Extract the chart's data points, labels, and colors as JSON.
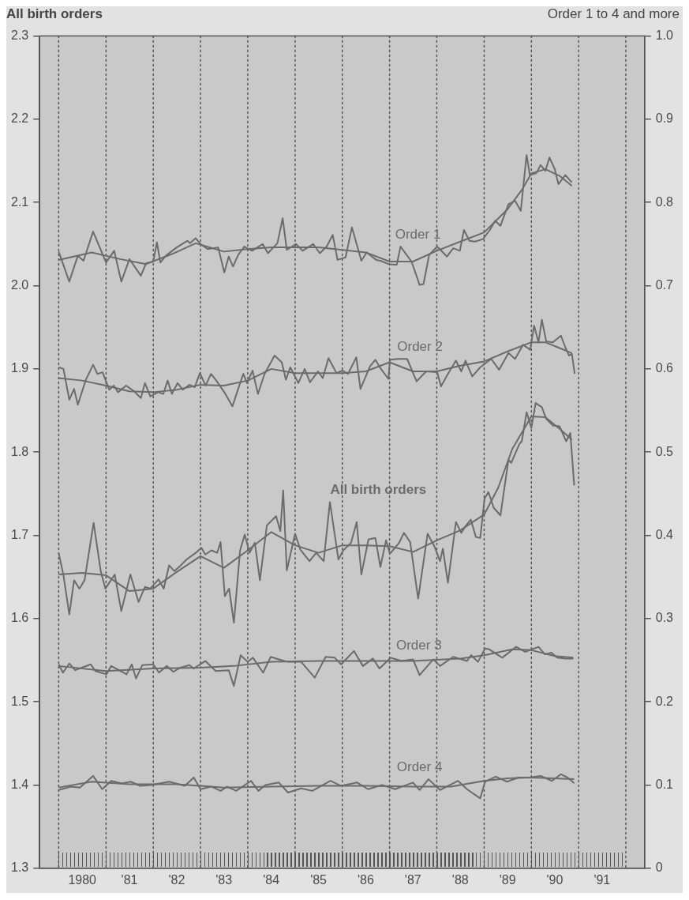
{
  "chart_data": {
    "type": "line",
    "ylabel": "All birth orders",
    "y2label": "Order 1 to 4 and more",
    "xlim": [
      "1979-08-07",
      "1992-05-25"
    ],
    "xticks": [
      {
        "value": "1980-07-01",
        "label": "1980"
      },
      {
        "value": "1981-07-01",
        "label": "'81"
      },
      {
        "value": "1982-07-01",
        "label": "'82"
      },
      {
        "value": "1983-07-01",
        "label": "'83"
      },
      {
        "value": "1984-07-01",
        "label": "'84"
      },
      {
        "value": "1985-07-01",
        "label": "'85"
      },
      {
        "value": "1986-07-01",
        "label": "'86"
      },
      {
        "value": "1987-07-01",
        "label": "'87"
      },
      {
        "value": "1988-07-01",
        "label": "'88"
      },
      {
        "value": "1989-07-01",
        "label": "'89"
      },
      {
        "value": "1990-07-01",
        "label": "'90"
      },
      {
        "value": "1991-07-01",
        "label": "'91"
      }
    ],
    "ylim": [
      1.3,
      2.3
    ],
    "yticks": [
      1.3,
      1.4,
      1.5,
      1.6,
      1.7,
      1.8,
      1.9,
      {
        "value": 2,
        "label": "2.0"
      },
      2.1,
      2.2,
      2.3
    ],
    "y2lim": [
      0,
      1
    ],
    "y2ticks": [
      0,
      0.1,
      0.2,
      0.3,
      0.4,
      0.5,
      0.6,
      0.7,
      0.8,
      0.9,
      {
        "value": 1,
        "label": "1.0"
      }
    ],
    "ref_lines": [
      {
        "axis": "x",
        "value": "1980-01-01",
        "line_style": "dotted",
        "color": "#555555"
      },
      {
        "axis": "x",
        "value": "1981-01-01",
        "line_style": "dotted",
        "color": "#555555"
      },
      {
        "axis": "x",
        "value": "1982-01-01",
        "line_style": "dotted",
        "color": "#555555"
      },
      {
        "axis": "x",
        "value": "1983-01-01",
        "line_style": "dotted",
        "color": "#555555"
      },
      {
        "axis": "x",
        "value": "1984-01-01",
        "line_style": "dotted",
        "color": "#555555"
      },
      {
        "axis": "x",
        "value": "1985-01-01",
        "line_style": "dotted",
        "color": "#555555"
      },
      {
        "axis": "x",
        "value": "1986-01-01",
        "line_style": "dotted",
        "color": "#555555"
      },
      {
        "axis": "x",
        "value": "1987-01-01",
        "line_style": "dotted",
        "color": "#555555"
      },
      {
        "axis": "x",
        "value": "1988-01-01",
        "line_style": "dotted",
        "color": "#555555"
      },
      {
        "axis": "x",
        "value": "1989-01-01",
        "line_style": "dotted",
        "color": "#555555"
      },
      {
        "axis": "x",
        "value": "1990-01-01",
        "line_style": "dotted",
        "color": "#555555"
      },
      {
        "axis": "x",
        "value": "1991-01-01",
        "line_style": "dotted",
        "color": "#555555"
      },
      {
        "axis": "x",
        "value": "1992-01-01",
        "line_style": "dotted",
        "color": "#555555"
      }
    ],
    "series": [
      {
        "name": "Order 1",
        "color": "#6b6b6b",
        "axis": "y2",
        "x": [
          "1980-01-01",
          "1980-03-23",
          "1980-05-28",
          "1980-07-11",
          "1980-09-23",
          "1981-01-01",
          "1981-03-05",
          "1981-04-29",
          "1981-07-01",
          "1981-09-27",
          "1981-11-07",
          "1982-01-01",
          "1982-01-29",
          "1982-02-25",
          "1982-04-08",
          "1982-07-01",
          "1982-09-23",
          "1982-10-11",
          "1982-11-25",
          "1983-01-01",
          "1983-02-25",
          "1983-05-17",
          "1983-07-04",
          "1983-08-07",
          "1983-09-09",
          "1983-10-19",
          "1983-12-05",
          "1984-02-03",
          "1984-04-26",
          "1984-06-05",
          "1984-08-17",
          "1984-09-27",
          "1984-10-29",
          "1985-01-08",
          "1985-02-28",
          "1985-05-21",
          "1985-07-11",
          "1985-09-02",
          "1985-10-19",
          "1985-11-25",
          "1986-01-26",
          "1986-03-16",
          "1986-05-28",
          "1986-07-08",
          "1986-09-20",
          "1986-10-22",
          "1986-12-23",
          "1987-02-25",
          "1987-03-27",
          "1987-06-20",
          "1987-08-21",
          "1987-09-20",
          "1987-11-03",
          "1988-01-04",
          "1988-03-20",
          "1988-05-07",
          "1988-06-27",
          "1988-07-29",
          "1988-09-09",
          "1988-10-22",
          "1988-12-23",
          "1989-02-14",
          "1989-03-27",
          "1989-05-07",
          "1989-07-08",
          "1989-08-28",
          "1989-10-11",
          "1989-11-25",
          "1989-12-20",
          "1990-02-07",
          "1990-03-13",
          "1990-04-19",
          "1990-05-21",
          "1990-07-01",
          "1990-07-29",
          "1990-09-20",
          "1990-11-10"
        ],
        "values": [
          0.741,
          0.705,
          0.736,
          0.73,
          0.765,
          0.728,
          0.742,
          0.705,
          0.732,
          0.712,
          0.727,
          0.729,
          0.752,
          0.728,
          0.736,
          0.746,
          0.754,
          0.751,
          0.757,
          0.75,
          0.744,
          0.746,
          0.716,
          0.735,
          0.723,
          0.737,
          0.747,
          0.742,
          0.75,
          0.739,
          0.751,
          0.781,
          0.743,
          0.75,
          0.742,
          0.75,
          0.739,
          0.747,
          0.761,
          0.731,
          0.734,
          0.77,
          0.73,
          0.74,
          0.731,
          0.73,
          0.726,
          0.725,
          0.747,
          0.729,
          0.701,
          0.702,
          0.737,
          0.747,
          0.735,
          0.745,
          0.742,
          0.767,
          0.754,
          0.753,
          0.756,
          0.767,
          0.778,
          0.772,
          0.798,
          0.802,
          0.79,
          0.857,
          0.833,
          0.835,
          0.845,
          0.838,
          0.854,
          0.84,
          0.822,
          0.833,
          0.824
        ]
      },
      {
        "color": "#6b6b6b",
        "axis": "y2",
        "x": [
          "1980-01-01",
          "1980-09-13",
          "1981-04-19",
          "1981-11-07",
          "1982-05-25",
          "1982-11-25",
          "1983-07-01",
          "1984-01-01",
          "1984-07-01",
          "1985-01-01",
          "1985-07-01",
          "1986-01-01",
          "1986-07-01",
          "1987-01-01",
          "1987-07-01",
          "1988-01-01",
          "1988-07-01",
          "1989-01-01",
          "1989-07-01",
          "1989-10-19",
          "1990-01-01",
          "1990-04-19",
          "1990-08-07",
          "1990-11-10"
        ],
        "values": [
          0.731,
          0.74,
          0.732,
          0.726,
          0.738,
          0.751,
          0.741,
          0.744,
          0.746,
          0.746,
          0.746,
          0.743,
          0.74,
          0.729,
          0.729,
          0.742,
          0.753,
          0.764,
          0.792,
          0.815,
          0.835,
          0.84,
          0.832,
          0.82
        ]
      },
      {
        "name": "Order 2",
        "color": "#6b6b6b",
        "axis": "y2",
        "x": [
          "1980-01-01",
          "1980-02-07",
          "1980-03-23",
          "1980-04-29",
          "1980-05-28",
          "1980-07-29",
          "1980-09-23",
          "1980-10-26",
          "1980-12-05",
          "1981-01-26",
          "1981-03-02",
          "1981-04-04",
          "1981-06-05",
          "1981-08-07",
          "1981-09-27",
          "1981-10-29",
          "1981-12-09",
          "1982-02-07",
          "1982-03-20",
          "1982-04-22",
          "1982-05-25",
          "1982-07-08",
          "1982-08-17",
          "1982-10-08",
          "1982-11-17",
          "1982-12-27",
          "1983-02-10",
          "1983-03-23",
          "1983-05-03",
          "1983-07-04",
          "1983-09-05",
          "1983-10-19",
          "1983-11-28",
          "1983-12-27",
          "1984-02-07",
          "1984-03-20",
          "1984-05-10",
          "1984-07-26",
          "1984-09-20",
          "1984-10-22",
          "1984-11-25",
          "1985-01-26",
          "1985-03-16",
          "1985-04-26",
          "1985-06-27",
          "1985-08-03",
          "1985-09-16",
          "1985-11-17",
          "1986-01-01",
          "1986-02-14",
          "1986-04-19",
          "1986-05-21",
          "1986-08-03",
          "1986-09-13",
          "1986-10-22",
          "1986-12-23",
          "1987-01-04",
          "1987-03-05",
          "1987-05-17",
          "1987-07-29",
          "1987-10-11",
          "1988-01-04",
          "1988-02-03",
          "1988-03-16",
          "1988-05-28",
          "1988-07-08",
          "1988-08-10",
          "1988-10-01",
          "1988-12-02",
          "1989-02-25",
          "1989-04-26",
          "1989-07-08",
          "1989-08-28",
          "1989-10-29",
          "1989-12-23",
          "1990-01-22",
          "1990-02-25",
          "1990-03-23",
          "1990-04-26",
          "1990-06-16",
          "1990-08-17",
          "1990-09-20",
          "1990-10-19",
          "1990-11-10",
          "1990-12-02"
        ],
        "values": [
          0.602,
          0.6,
          0.563,
          0.576,
          0.557,
          0.587,
          0.605,
          0.594,
          0.596,
          0.575,
          0.58,
          0.572,
          0.58,
          0.573,
          0.565,
          0.583,
          0.567,
          0.572,
          0.57,
          0.586,
          0.57,
          0.583,
          0.575,
          0.581,
          0.578,
          0.595,
          0.58,
          0.594,
          0.586,
          0.572,
          0.555,
          0.576,
          0.594,
          0.583,
          0.598,
          0.57,
          0.594,
          0.616,
          0.608,
          0.587,
          0.602,
          0.583,
          0.6,
          0.584,
          0.597,
          0.589,
          0.613,
          0.595,
          0.598,
          0.594,
          0.614,
          0.576,
          0.603,
          0.611,
          0.601,
          0.588,
          0.611,
          0.612,
          0.612,
          0.585,
          0.597,
          0.596,
          0.579,
          0.591,
          0.61,
          0.597,
          0.61,
          0.591,
          0.602,
          0.612,
          0.599,
          0.619,
          0.612,
          0.629,
          0.623,
          0.652,
          0.632,
          0.659,
          0.633,
          0.632,
          0.64,
          0.626,
          0.616,
          0.618,
          0.594
        ]
      },
      {
        "color": "#6b6b6b",
        "axis": "y2",
        "x": [
          "1980-01-01",
          "1980-07-01",
          "1981-01-01",
          "1981-07-01",
          "1982-01-01",
          "1982-07-01",
          "1983-01-01",
          "1983-07-01",
          "1984-01-01",
          "1984-07-01",
          "1985-01-01",
          "1985-07-01",
          "1986-01-01",
          "1986-07-01",
          "1987-01-01",
          "1987-07-01",
          "1988-01-01",
          "1988-07-01",
          "1989-01-01",
          "1989-07-01",
          "1990-01-01",
          "1990-04-19",
          "1990-08-07",
          "1990-11-10"
        ],
        "values": [
          0.589,
          0.586,
          0.58,
          0.573,
          0.572,
          0.575,
          0.581,
          0.58,
          0.586,
          0.6,
          0.595,
          0.595,
          0.595,
          0.597,
          0.608,
          0.597,
          0.597,
          0.604,
          0.609,
          0.621,
          0.632,
          0.632,
          0.625,
          0.619
        ]
      },
      {
        "name": "All birth orders",
        "color": "#6b6b6b",
        "axis": "y",
        "x": [
          "1980-01-01",
          "1980-02-07",
          "1980-03-23",
          "1980-04-29",
          "1980-06-09",
          "1980-07-19",
          "1980-09-27",
          "1980-11-21",
          "1980-12-27",
          "1981-03-09",
          "1981-04-29",
          "1981-07-08",
          "1981-09-09",
          "1981-10-29",
          "1981-12-09",
          "1982-02-10",
          "1982-03-23",
          "1982-05-03",
          "1982-06-13",
          "1982-07-26",
          "1982-09-16",
          "1982-11-25",
          "1983-01-08",
          "1983-02-07",
          "1983-03-27",
          "1983-05-10",
          "1983-06-05",
          "1983-07-08",
          "1983-08-10",
          "1983-09-16",
          "1983-11-03",
          "1983-12-09",
          "1984-01-15",
          "1984-02-25",
          "1984-04-04",
          "1984-05-28",
          "1984-08-07",
          "1984-09-09",
          "1984-10-01",
          "1984-10-29",
          "1985-01-01",
          "1985-02-10",
          "1985-04-22",
          "1985-06-13",
          "1985-08-10",
          "1985-09-27",
          "1985-12-02",
          "1986-01-08",
          "1986-03-09",
          "1986-04-22",
          "1986-05-28",
          "1986-07-22",
          "1986-09-13",
          "1986-10-22",
          "1986-12-05",
          "1987-01-04",
          "1987-03-16",
          "1987-04-22",
          "1987-06-09",
          "1987-08-10",
          "1987-10-22",
          "1987-12-13",
          "1988-01-26",
          "1988-02-17",
          "1988-03-27",
          "1988-05-28",
          "1988-07-08",
          "1988-08-10",
          "1988-09-20",
          "1988-10-29",
          "1988-12-02",
          "1989-01-04",
          "1989-02-03",
          "1989-03-16",
          "1989-05-07",
          "1989-07-08",
          "1989-07-29",
          "1989-10-01",
          "1989-10-19",
          "1989-11-25",
          "1990-01-01",
          "1990-02-03",
          "1990-03-23",
          "1990-04-26",
          "1990-06-16",
          "1990-08-07",
          "1990-09-27",
          "1990-10-29",
          "1990-11-28"
        ],
        "values": [
          1.679,
          1.652,
          1.605,
          1.646,
          1.636,
          1.646,
          1.715,
          1.657,
          1.636,
          1.653,
          1.609,
          1.653,
          1.62,
          1.638,
          1.636,
          1.647,
          1.636,
          1.664,
          1.657,
          1.663,
          1.671,
          1.679,
          1.685,
          1.677,
          1.682,
          1.679,
          1.692,
          1.627,
          1.636,
          1.595,
          1.682,
          1.701,
          1.679,
          1.691,
          1.646,
          1.712,
          1.723,
          1.705,
          1.754,
          1.658,
          1.702,
          1.683,
          1.669,
          1.679,
          1.669,
          1.74,
          1.671,
          1.682,
          1.691,
          1.716,
          1.653,
          1.695,
          1.697,
          1.662,
          1.694,
          1.678,
          1.691,
          1.703,
          1.692,
          1.624,
          1.702,
          1.687,
          1.669,
          1.684,
          1.643,
          1.716,
          1.703,
          1.711,
          1.719,
          1.698,
          1.697,
          1.744,
          1.752,
          1.733,
          1.724,
          1.791,
          1.787,
          1.81,
          1.813,
          1.848,
          1.829,
          1.859,
          1.854,
          1.84,
          1.832,
          1.831,
          1.813,
          1.823,
          1.76
        ]
      },
      {
        "color": "#6b6b6b",
        "axis": "y",
        "x": [
          "1980-01-01",
          "1980-07-01",
          "1981-01-01",
          "1981-07-01",
          "1982-01-01",
          "1982-07-01",
          "1983-01-01",
          "1983-07-01",
          "1984-01-01",
          "1984-07-01",
          "1985-01-01",
          "1985-07-01",
          "1986-01-01",
          "1986-07-01",
          "1987-01-01",
          "1987-07-01",
          "1988-01-01",
          "1988-07-01",
          "1989-01-01",
          "1989-04-19",
          "1989-08-07",
          "1990-01-01",
          "1990-04-19",
          "1990-08-07",
          "1990-11-10"
        ],
        "values": [
          1.653,
          1.655,
          1.652,
          1.633,
          1.636,
          1.656,
          1.675,
          1.661,
          1.682,
          1.704,
          1.688,
          1.679,
          1.688,
          1.688,
          1.687,
          1.68,
          1.694,
          1.706,
          1.725,
          1.757,
          1.804,
          1.843,
          1.842,
          1.828,
          1.815
        ]
      },
      {
        "name": "Order 3",
        "color": "#6b6b6b",
        "axis": "y2",
        "x": [
          "1980-01-01",
          "1980-02-03",
          "1980-03-23",
          "1980-05-07",
          "1980-09-05",
          "1980-10-11",
          "1981-01-04",
          "1981-02-10",
          "1981-06-09",
          "1981-07-19",
          "1981-08-21",
          "1981-10-08",
          "1982-01-01",
          "1982-02-14",
          "1982-04-15",
          "1982-06-05",
          "1982-07-29",
          "1982-10-08",
          "1982-11-10",
          "1983-02-07",
          "1983-04-29",
          "1983-08-07",
          "1983-09-16",
          "1983-11-07",
          "1984-01-01",
          "1984-02-10",
          "1984-04-29",
          "1984-06-27",
          "1984-08-28",
          "1984-11-07",
          "1985-02-17",
          "1985-06-02",
          "1985-08-25",
          "1985-11-03",
          "1985-12-23",
          "1986-04-01",
          "1986-06-09",
          "1986-08-25",
          "1986-10-15",
          "1987-01-11",
          "1987-04-04",
          "1987-07-01",
          "1987-08-21",
          "1987-12-05",
          "1988-01-26",
          "1988-05-07",
          "1988-08-21",
          "1988-09-23",
          "1988-11-14",
          "1989-01-08",
          "1989-02-10",
          "1989-05-21",
          "1989-09-05",
          "1989-11-14",
          "1990-02-25",
          "1990-04-15",
          "1990-06-05",
          "1990-07-19",
          "1990-09-20",
          "1990-11-21"
        ],
        "values": [
          0.245,
          0.235,
          0.246,
          0.238,
          0.245,
          0.237,
          0.233,
          0.243,
          0.233,
          0.245,
          0.228,
          0.244,
          0.245,
          0.235,
          0.243,
          0.236,
          0.241,
          0.244,
          0.24,
          0.249,
          0.237,
          0.238,
          0.219,
          0.256,
          0.248,
          0.253,
          0.235,
          0.254,
          0.251,
          0.248,
          0.248,
          0.229,
          0.254,
          0.253,
          0.245,
          0.261,
          0.243,
          0.252,
          0.24,
          0.253,
          0.249,
          0.251,
          0.232,
          0.251,
          0.243,
          0.254,
          0.249,
          0.256,
          0.248,
          0.264,
          0.263,
          0.253,
          0.266,
          0.26,
          0.266,
          0.257,
          0.259,
          0.253,
          0.252,
          0.252
        ]
      },
      {
        "color": "#6b6b6b",
        "axis": "y2",
        "x": [
          "1980-01-01",
          "1981-01-01",
          "1982-01-01",
          "1983-01-01",
          "1983-09-13",
          "1984-07-01",
          "1985-07-01",
          "1986-07-01",
          "1987-07-01",
          "1988-07-01",
          "1989-01-01",
          "1989-08-07",
          "1990-01-01",
          "1990-07-01",
          "1990-11-21"
        ],
        "values": [
          0.243,
          0.237,
          0.24,
          0.241,
          0.243,
          0.248,
          0.249,
          0.249,
          0.249,
          0.252,
          0.256,
          0.263,
          0.262,
          0.255,
          0.253
        ]
      },
      {
        "name": "Order 4",
        "color": "#6b6b6b",
        "axis": "y2",
        "x": [
          "1980-01-01",
          "1980-04-04",
          "1980-06-13",
          "1980-09-23",
          "1980-12-02",
          "1981-02-10",
          "1981-05-03",
          "1981-07-11",
          "1981-09-20",
          "1981-12-16",
          "1982-05-03",
          "1982-09-02",
          "1982-11-10",
          "1983-01-01",
          "1983-03-27",
          "1983-06-05",
          "1983-07-26",
          "1983-10-04",
          "1984-01-26",
          "1984-03-23",
          "1984-05-17",
          "1984-08-28",
          "1984-11-07",
          "1985-02-17",
          "1985-05-14",
          "1985-10-01",
          "1985-12-23",
          "1986-04-26",
          "1986-07-19",
          "1986-11-03",
          "1987-02-14",
          "1987-07-01",
          "1987-08-21",
          "1987-10-29",
          "1988-01-26",
          "1988-06-13",
          "1988-08-21",
          "1988-12-02",
          "1989-01-08",
          "1989-04-01",
          "1989-06-27",
          "1989-09-23",
          "1989-12-16",
          "1990-03-13",
          "1990-06-09",
          "1990-08-17",
          "1990-10-08",
          "1990-11-28"
        ],
        "values": [
          0.094,
          0.098,
          0.097,
          0.111,
          0.095,
          0.105,
          0.102,
          0.104,
          0.099,
          0.1,
          0.104,
          0.099,
          0.109,
          0.095,
          0.098,
          0.093,
          0.098,
          0.093,
          0.105,
          0.093,
          0.1,
          0.103,
          0.091,
          0.096,
          0.093,
          0.105,
          0.099,
          0.103,
          0.095,
          0.1,
          0.095,
          0.103,
          0.094,
          0.107,
          0.094,
          0.105,
          0.095,
          0.084,
          0.104,
          0.11,
          0.104,
          0.109,
          0.109,
          0.111,
          0.105,
          0.113,
          0.109,
          0.102
        ]
      },
      {
        "color": "#6b6b6b",
        "axis": "y2",
        "x": [
          "1980-01-01",
          "1980-09-13",
          "1981-07-01",
          "1982-07-01",
          "1983-07-01",
          "1984-07-01",
          "1985-07-01",
          "1986-07-01",
          "1987-07-01",
          "1988-04-19",
          "1989-01-01",
          "1989-07-01",
          "1990-01-01",
          "1990-11-28"
        ],
        "values": [
          0.097,
          0.104,
          0.101,
          0.101,
          0.097,
          0.098,
          0.099,
          0.099,
          0.098,
          0.098,
          0.105,
          0.108,
          0.109,
          0.107
        ]
      }
    ]
  }
}
